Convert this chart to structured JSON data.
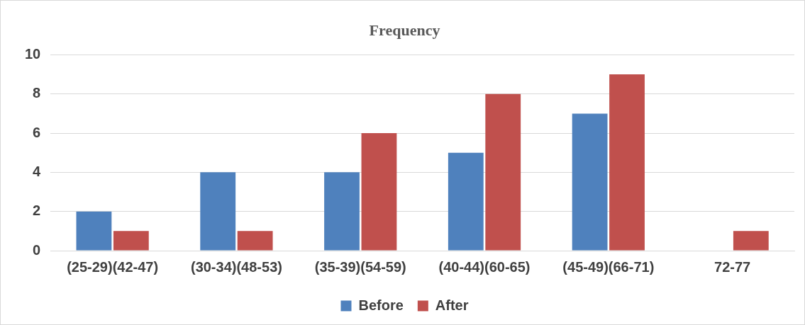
{
  "chart_data": {
    "type": "bar",
    "title": "Frequency",
    "categories": [
      "(25-29)(42-47)",
      "(30-34)(48-53)",
      "(35-39)(54-59)",
      "(40-44)(60-65)",
      "(45-49)(66-71)",
      "72-77"
    ],
    "series": [
      {
        "name": "Before",
        "color": "#4f81bd",
        "values": [
          2,
          4,
          4,
          5,
          7,
          null
        ]
      },
      {
        "name": "After",
        "color": "#c0504d",
        "values": [
          1,
          1,
          6,
          8,
          9,
          1
        ]
      }
    ],
    "ylim": [
      0,
      10
    ],
    "yticks": [
      0,
      2,
      4,
      6,
      8,
      10
    ],
    "grid": "y",
    "legend": "bottom"
  }
}
